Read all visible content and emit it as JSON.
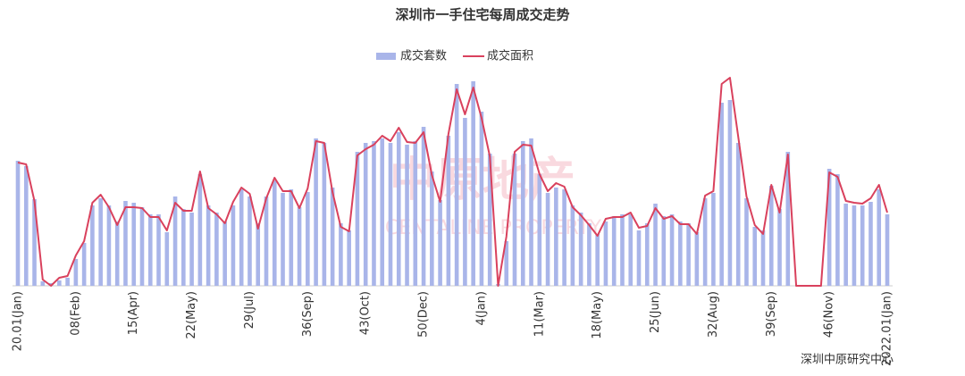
{
  "chart_data": {
    "type": "bar-line",
    "title": "深圳市一手住宅每周成交走势",
    "source": "深圳中原研究中心",
    "watermark": [
      "中原地产",
      "CENTALINE PROPERTY"
    ],
    "categories": [
      "20.01(Jan)",
      null,
      null,
      null,
      null,
      null,
      null,
      "08(Feb)",
      null,
      null,
      null,
      null,
      null,
      null,
      "15(Apr)",
      null,
      null,
      null,
      null,
      null,
      null,
      "22(May)",
      null,
      null,
      null,
      null,
      null,
      null,
      "29(Jul)",
      null,
      null,
      null,
      null,
      null,
      null,
      "36(Sep)",
      null,
      null,
      null,
      null,
      null,
      null,
      "43(Oct)",
      null,
      null,
      null,
      null,
      null,
      null,
      "50(Dec)",
      null,
      null,
      null,
      null,
      null,
      null,
      "4(Jan)",
      null,
      null,
      null,
      null,
      null,
      null,
      "11(Mar)",
      null,
      null,
      null,
      null,
      null,
      null,
      "18(May)",
      null,
      null,
      null,
      null,
      null,
      null,
      "25(Jun)",
      null,
      null,
      null,
      null,
      null,
      null,
      "32(Aug)",
      null,
      null,
      null,
      null,
      null,
      null,
      "39(Sep)",
      null,
      null,
      null,
      null,
      null,
      null,
      "46(Nov)",
      null,
      null,
      null,
      null,
      null,
      null,
      "2022.01(Jan)"
    ],
    "ylim": [
      0,
      240
    ],
    "series": [
      {
        "name": "成交套数",
        "kind": "bar",
        "color": "#a9b5e9",
        "values": [
          140,
          134,
          97,
          5,
          3,
          6,
          9,
          30,
          48,
          90,
          98,
          90,
          72,
          95,
          93,
          88,
          80,
          80,
          60,
          100,
          86,
          82,
          125,
          90,
          82,
          72,
          90,
          108,
          100,
          70,
          100,
          118,
          104,
          108,
          88,
          105,
          165,
          160,
          110,
          70,
          62,
          150,
          160,
          162,
          165,
          160,
          172,
          158,
          162,
          178,
          128,
          96,
          168,
          226,
          188,
          229,
          195,
          148,
          2,
          50,
          148,
          162,
          165,
          125,
          104,
          110,
          108,
          90,
          82,
          70,
          58,
          72,
          78,
          80,
          80,
          62,
          70,
          92,
          78,
          80,
          72,
          70,
          60,
          98,
          104,
          205,
          208,
          160,
          98,
          66,
          62,
          112,
          86,
          150,
          0,
          0,
          0,
          0,
          131,
          125,
          92,
          90,
          90,
          94,
          108,
          80
        ]
      },
      {
        "name": "成交面积",
        "kind": "line",
        "color": "#d9415d",
        "values": [
          138,
          136,
          95,
          7,
          0,
          9,
          11,
          34,
          50,
          93,
          102,
          88,
          68,
          88,
          88,
          87,
          77,
          77,
          62,
          93,
          84,
          84,
          128,
          87,
          80,
          70,
          94,
          110,
          103,
          64,
          98,
          121,
          106,
          106,
          87,
          109,
          162,
          160,
          105,
          66,
          61,
          146,
          153,
          158,
          168,
          162,
          177,
          161,
          160,
          172,
          124,
          94,
          170,
          220,
          192,
          222,
          188,
          145,
          0,
          55,
          150,
          158,
          157,
          125,
          106,
          115,
          111,
          88,
          79,
          68,
          56,
          75,
          77,
          77,
          82,
          65,
          67,
          87,
          75,
          78,
          69,
          69,
          58,
          101,
          106,
          226,
          233,
          167,
          100,
          68,
          58,
          113,
          82,
          147,
          0,
          0,
          0,
          0,
          127,
          122,
          95,
          93,
          92,
          98,
          113,
          82
        ]
      }
    ]
  }
}
